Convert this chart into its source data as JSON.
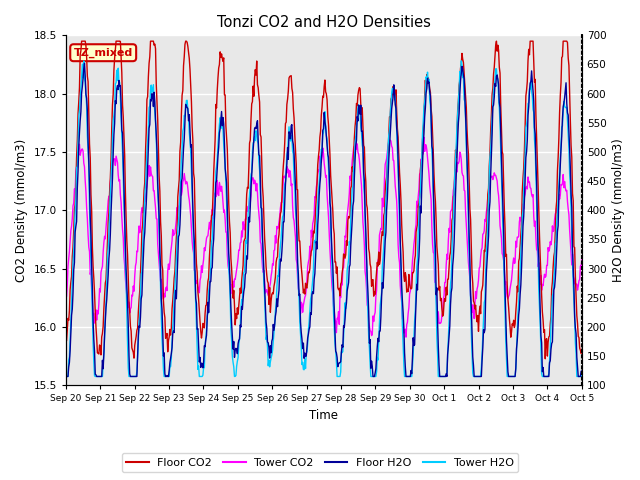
{
  "title": "Tonzi CO2 and H2O Densities",
  "xlabel": "Time",
  "ylabel_left": "CO2 Density (mmol/m3)",
  "ylabel_right": "H2O Density (mmol/m3)",
  "ylim_left": [
    15.5,
    18.5
  ],
  "ylim_right": [
    100,
    700
  ],
  "yticks_left": [
    15.5,
    16.0,
    16.5,
    17.0,
    17.5,
    18.0,
    18.5
  ],
  "yticks_right": [
    100,
    150,
    200,
    250,
    300,
    350,
    400,
    450,
    500,
    550,
    600,
    650,
    700
  ],
  "colors": {
    "floor_co2": "#CC0000",
    "tower_co2": "#FF00FF",
    "floor_h2o": "#000099",
    "tower_h2o": "#00CCFF"
  },
  "legend_labels": [
    "Floor CO2",
    "Tower CO2",
    "Floor H2O",
    "Tower H2O"
  ],
  "annotation_text": "TZ_mixed",
  "annotation_bg": "#FFFFCC",
  "annotation_edge": "#CC0000",
  "plot_bg": "#E8E8E8",
  "fig_bg": "#FFFFFF",
  "linewidth": 1.0,
  "n_days": 15
}
